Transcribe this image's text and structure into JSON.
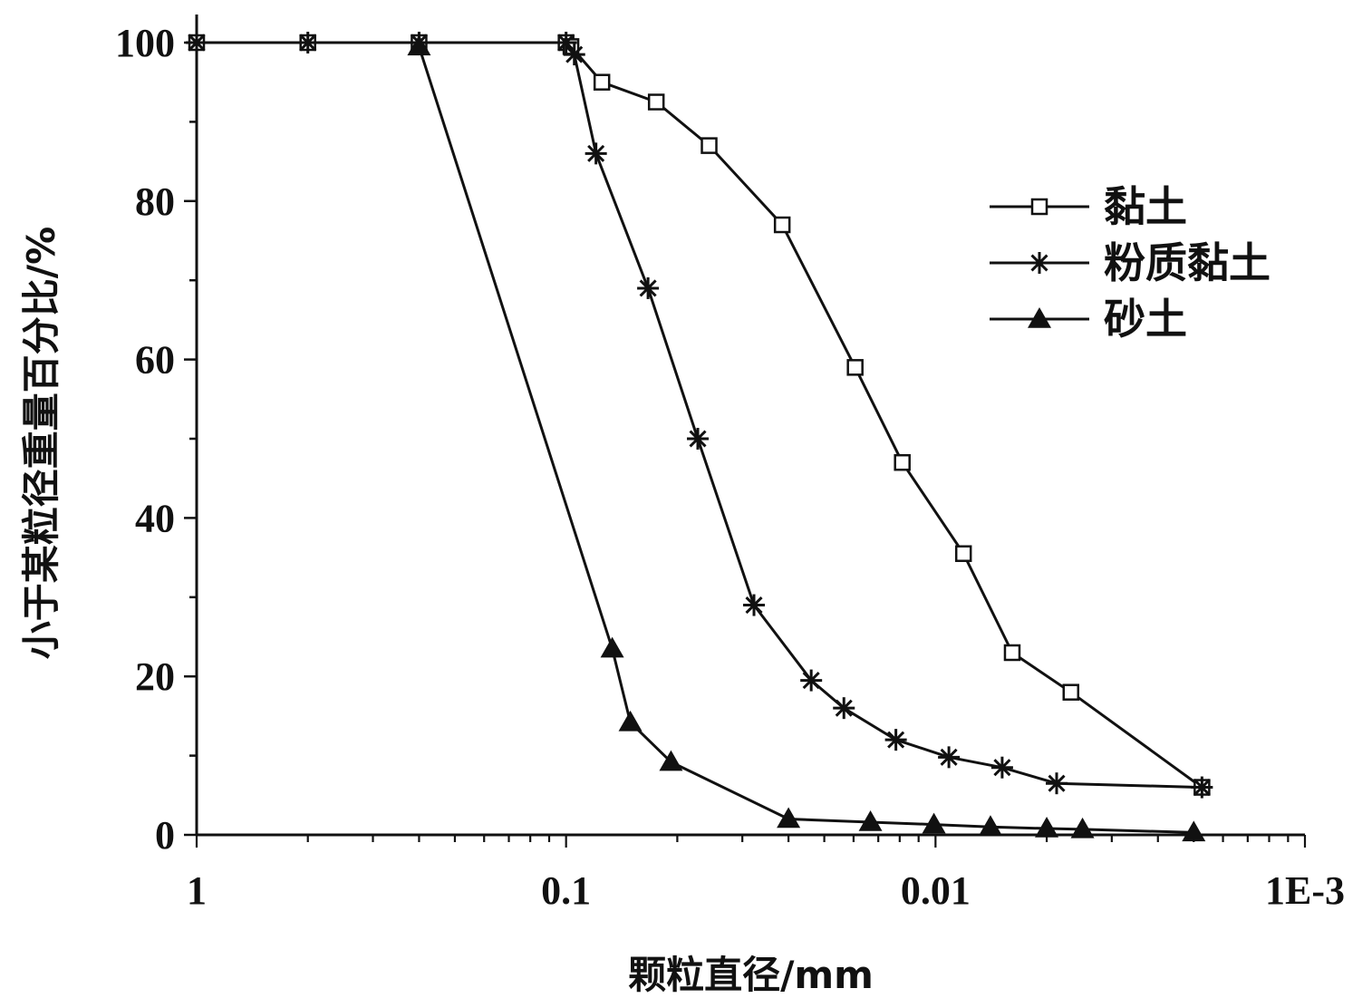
{
  "chart_data": {
    "type": "line",
    "x_scale": "log",
    "x_reversed": true,
    "xlim": [
      1,
      0.001
    ],
    "ylim": [
      0,
      100
    ],
    "xlabel": "颗粒直径/mm",
    "ylabel": "小于某粒径重量百分比/%",
    "x_tick_labels": [
      "1",
      "0.1",
      "0.01",
      "1E-3"
    ],
    "x_tick_values": [
      1,
      0.1,
      0.01,
      0.001
    ],
    "y_tick_labels": [
      "0",
      "20",
      "40",
      "60",
      "80",
      "100"
    ],
    "y_tick_values": [
      0,
      20,
      40,
      60,
      80,
      100
    ],
    "legend_position": "top-right",
    "series": [
      {
        "name": "黏土",
        "marker": "open-square",
        "x": [
          1,
          0.5,
          0.25,
          0.1,
          0.097,
          0.08,
          0.057,
          0.041,
          0.026,
          0.0165,
          0.0123,
          0.0084,
          0.0062,
          0.0043,
          0.0019
        ],
        "y": [
          100,
          100,
          100,
          100,
          99.5,
          95,
          92.5,
          87,
          77,
          59,
          47,
          35.5,
          23,
          18,
          6
        ]
      },
      {
        "name": "粉质黏土",
        "marker": "asterisk",
        "x": [
          1,
          0.5,
          0.25,
          0.1,
          0.095,
          0.083,
          0.06,
          0.044,
          0.031,
          0.0217,
          0.0177,
          0.0128,
          0.0092,
          0.0066,
          0.0047,
          0.0019
        ],
        "y": [
          100,
          100,
          100,
          100,
          98.5,
          86,
          69,
          50,
          29,
          19.5,
          16,
          12,
          9.8,
          8.5,
          6.5,
          6
        ]
      },
      {
        "name": "砂土",
        "marker": "filled-triangle",
        "x": [
          0.25,
          0.075,
          0.067,
          0.052,
          0.025,
          0.015,
          0.0101,
          0.0071,
          0.005,
          0.004,
          0.002
        ],
        "y": [
          99.5,
          23.5,
          14.2,
          9.2,
          2,
          1.6,
          1.3,
          1,
          0.8,
          0.7,
          0.3
        ]
      }
    ]
  }
}
